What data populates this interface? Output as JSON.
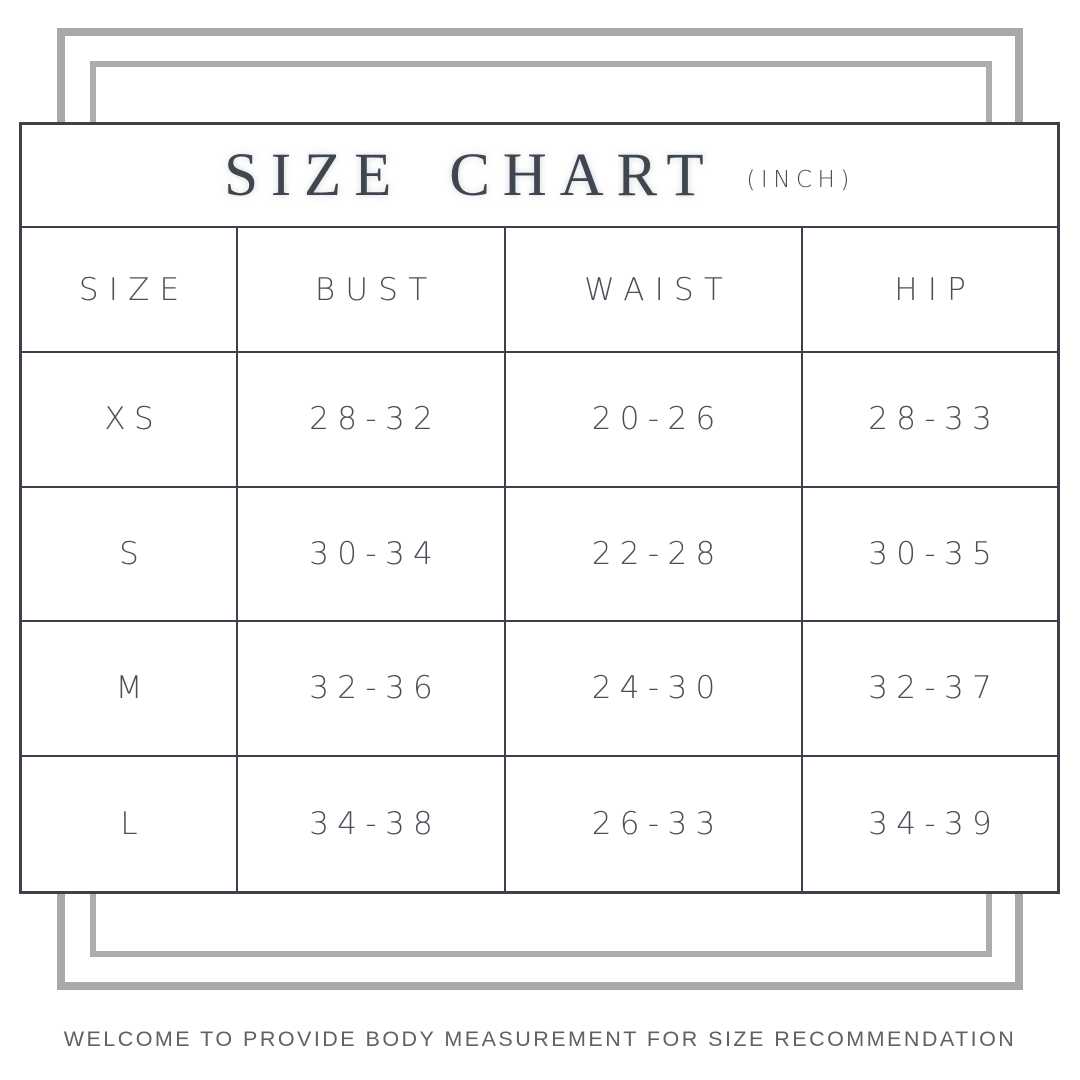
{
  "header": {
    "title": "SIZE CHART",
    "unit_label": "(INCH)"
  },
  "table": {
    "headers": [
      "SIZE",
      "BUST",
      "WAIST",
      "HIP"
    ],
    "rows": [
      {
        "cells": [
          "XS",
          "28-32",
          "20-26",
          "28-33"
        ]
      },
      {
        "cells": [
          "S",
          "30-34",
          "22-28",
          "30-35"
        ]
      },
      {
        "cells": [
          "M",
          "32-36",
          "24-30",
          "32-37"
        ]
      },
      {
        "cells": [
          "L",
          "34-38",
          "26-33",
          "34-39"
        ]
      }
    ]
  },
  "footer": {
    "note": "WELCOME TO PROVIDE BODY MEASUREMENT FOR SIZE RECOMMENDATION"
  },
  "colors": {
    "frame_gray": "#a9a9a9",
    "table_border": "#3d424a",
    "text": "#4a5058",
    "footer_text": "#5d6168",
    "background": "#ffffff"
  },
  "chart_data": {
    "type": "table",
    "title": "SIZE CHART",
    "unit": "INCH",
    "columns": [
      "SIZE",
      "BUST",
      "WAIST",
      "HIP"
    ],
    "rows": [
      [
        "XS",
        "28-32",
        "20-26",
        "28-33"
      ],
      [
        "S",
        "30-34",
        "22-28",
        "30-35"
      ],
      [
        "M",
        "32-36",
        "24-30",
        "32-37"
      ],
      [
        "L",
        "34-38",
        "26-33",
        "34-39"
      ]
    ],
    "footnote": "WELCOME TO PROVIDE BODY MEASUREMENT FOR SIZE RECOMMENDATION"
  }
}
